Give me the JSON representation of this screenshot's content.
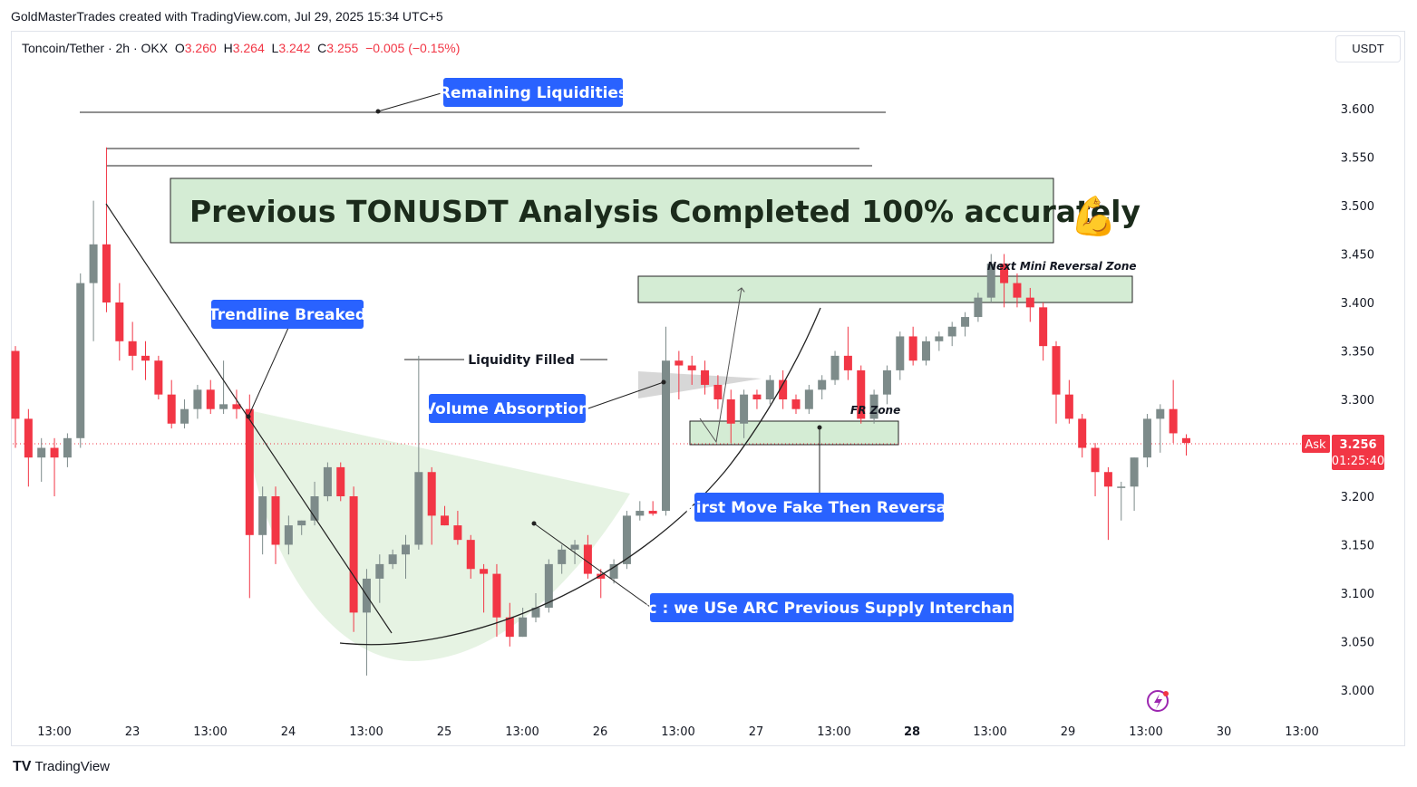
{
  "header": {
    "credit": "GoldMasterTrades created with TradingView.com, Jul 29, 2025 15:34 UTC+5",
    "symbol_name": "Toncoin/Tether · 2h · OKX",
    "o_label": "O",
    "o_value": "3.260",
    "h_label": "H",
    "h_value": "3.264",
    "l_label": "L",
    "l_value": "3.242",
    "c_label": "C",
    "c_value": "3.255",
    "change": "−0.005 (−0.15%)",
    "currency": "USDT"
  },
  "footer": {
    "logo_mark": "TV",
    "logo_text": "TradingView"
  },
  "price_tag": {
    "ask_label": "Ask",
    "price": "3.256",
    "countdown": "01:25:40"
  },
  "colors": {
    "up": "#7d8b8a",
    "down": "#f23645",
    "label_blue": "#2962ff",
    "zone": "#c8e6c9",
    "arc_fill": "#e3f2e0"
  },
  "annotations": {
    "banner": "Previous TONUSDT Analysis Completed 100% accurately",
    "banner_emoji": "💪",
    "remaining": "Remaining Liquidities",
    "trendline": "Trendline Breaked",
    "liquidity_filled": "Liquidity Filled",
    "volume": "Volume Absorption",
    "arc": "Arc : we USe ARC Previous Supply Interchange",
    "first_move": "First Move Fake Then Reversal",
    "mini_zone": "Next Mini Reversal Zone",
    "fr_zone": "FR Zone"
  },
  "chart_data": {
    "type": "candlestick",
    "title": "Toncoin/Tether · 2h · OKX",
    "ylim": [
      2.985,
      3.635
    ],
    "y_ticks": [
      "3.600",
      "3.550",
      "3.500",
      "3.450",
      "3.400",
      "3.350",
      "3.300",
      "3.250",
      "3.200",
      "3.150",
      "3.100",
      "3.050",
      "3.000"
    ],
    "x_ticks": [
      "13:00",
      "23",
      "13:00",
      "24",
      "13:00",
      "25",
      "13:00",
      "26",
      "13:00",
      "27",
      "13:00",
      "28",
      "13:00",
      "29",
      "13:00",
      "30",
      "13:00"
    ],
    "x_ticks_bold": [
      "28"
    ],
    "last_price": 3.256,
    "candles": [
      [
        3.35,
        3.355,
        3.25,
        3.28
      ],
      [
        3.28,
        3.29,
        3.21,
        3.24
      ],
      [
        3.24,
        3.26,
        3.215,
        3.25
      ],
      [
        3.25,
        3.26,
        3.2,
        3.24
      ],
      [
        3.24,
        3.265,
        3.23,
        3.26
      ],
      [
        3.26,
        3.43,
        3.25,
        3.42
      ],
      [
        3.42,
        3.505,
        3.36,
        3.46
      ],
      [
        3.46,
        3.56,
        3.39,
        3.4
      ],
      [
        3.4,
        3.42,
        3.34,
        3.36
      ],
      [
        3.36,
        3.38,
        3.33,
        3.345
      ],
      [
        3.345,
        3.36,
        3.32,
        3.34
      ],
      [
        3.34,
        3.345,
        3.3,
        3.305
      ],
      [
        3.305,
        3.32,
        3.27,
        3.275
      ],
      [
        3.275,
        3.3,
        3.27,
        3.29
      ],
      [
        3.29,
        3.315,
        3.28,
        3.31
      ],
      [
        3.31,
        3.32,
        3.285,
        3.29
      ],
      [
        3.29,
        3.34,
        3.285,
        3.295
      ],
      [
        3.295,
        3.31,
        3.28,
        3.29
      ],
      [
        3.29,
        3.305,
        3.095,
        3.16
      ],
      [
        3.16,
        3.21,
        3.14,
        3.2
      ],
      [
        3.2,
        3.21,
        3.13,
        3.15
      ],
      [
        3.15,
        3.18,
        3.14,
        3.17
      ],
      [
        3.17,
        3.175,
        3.16,
        3.175
      ],
      [
        3.175,
        3.215,
        3.17,
        3.2
      ],
      [
        3.2,
        3.235,
        3.195,
        3.23
      ],
      [
        3.23,
        3.235,
        3.195,
        3.2
      ],
      [
        3.2,
        3.21,
        3.06,
        3.08
      ],
      [
        3.08,
        3.125,
        3.015,
        3.115
      ],
      [
        3.115,
        3.14,
        3.09,
        3.13
      ],
      [
        3.13,
        3.145,
        3.125,
        3.14
      ],
      [
        3.14,
        3.16,
        3.115,
        3.15
      ],
      [
        3.15,
        3.345,
        3.145,
        3.225
      ],
      [
        3.225,
        3.23,
        3.15,
        3.18
      ],
      [
        3.18,
        3.19,
        3.17,
        3.17
      ],
      [
        3.17,
        3.185,
        3.15,
        3.155
      ],
      [
        3.155,
        3.16,
        3.115,
        3.125
      ],
      [
        3.125,
        3.13,
        3.08,
        3.12
      ],
      [
        3.12,
        3.13,
        3.055,
        3.075
      ],
      [
        3.075,
        3.09,
        3.045,
        3.055
      ],
      [
        3.055,
        3.085,
        3.055,
        3.075
      ],
      [
        3.075,
        3.1,
        3.07,
        3.085
      ],
      [
        3.085,
        3.135,
        3.08,
        3.13
      ],
      [
        3.13,
        3.15,
        3.12,
        3.145
      ],
      [
        3.145,
        3.155,
        3.13,
        3.15
      ],
      [
        3.15,
        3.16,
        3.115,
        3.12
      ],
      [
        3.12,
        3.125,
        3.095,
        3.115
      ],
      [
        3.115,
        3.135,
        3.11,
        3.13
      ],
      [
        3.13,
        3.185,
        3.125,
        3.18
      ],
      [
        3.18,
        3.195,
        3.175,
        3.185
      ],
      [
        3.185,
        3.195,
        3.18,
        3.182
      ],
      [
        3.185,
        3.375,
        3.18,
        3.34
      ],
      [
        3.34,
        3.35,
        3.3,
        3.335
      ],
      [
        3.335,
        3.345,
        3.315,
        3.33
      ],
      [
        3.33,
        3.34,
        3.305,
        3.315
      ],
      [
        3.315,
        3.325,
        3.29,
        3.3
      ],
      [
        3.3,
        3.31,
        3.255,
        3.275
      ],
      [
        3.275,
        3.31,
        3.26,
        3.305
      ],
      [
        3.305,
        3.31,
        3.29,
        3.3
      ],
      [
        3.3,
        3.325,
        3.295,
        3.32
      ],
      [
        3.32,
        3.33,
        3.29,
        3.3
      ],
      [
        3.3,
        3.305,
        3.285,
        3.29
      ],
      [
        3.29,
        3.315,
        3.285,
        3.31
      ],
      [
        3.31,
        3.325,
        3.3,
        3.32
      ],
      [
        3.32,
        3.35,
        3.315,
        3.345
      ],
      [
        3.345,
        3.375,
        3.32,
        3.33
      ],
      [
        3.33,
        3.335,
        3.275,
        3.28
      ],
      [
        3.28,
        3.31,
        3.275,
        3.305
      ],
      [
        3.305,
        3.335,
        3.295,
        3.33
      ],
      [
        3.33,
        3.37,
        3.32,
        3.365
      ],
      [
        3.365,
        3.375,
        3.335,
        3.34
      ],
      [
        3.34,
        3.365,
        3.335,
        3.36
      ],
      [
        3.36,
        3.37,
        3.35,
        3.365
      ],
      [
        3.365,
        3.38,
        3.355,
        3.375
      ],
      [
        3.375,
        3.39,
        3.365,
        3.385
      ],
      [
        3.385,
        3.41,
        3.38,
        3.405
      ],
      [
        3.405,
        3.45,
        3.4,
        3.44
      ],
      [
        3.44,
        3.45,
        3.395,
        3.42
      ],
      [
        3.42,
        3.43,
        3.395,
        3.405
      ],
      [
        3.405,
        3.415,
        3.38,
        3.395
      ],
      [
        3.395,
        3.4,
        3.34,
        3.355
      ],
      [
        3.355,
        3.36,
        3.275,
        3.305
      ],
      [
        3.305,
        3.32,
        3.275,
        3.28
      ],
      [
        3.28,
        3.285,
        3.24,
        3.25
      ],
      [
        3.25,
        3.255,
        3.2,
        3.225
      ],
      [
        3.225,
        3.23,
        3.155,
        3.21
      ],
      [
        3.21,
        3.215,
        3.175,
        3.21
      ],
      [
        3.21,
        3.24,
        3.185,
        3.24
      ],
      [
        3.24,
        3.285,
        3.23,
        3.28
      ],
      [
        3.28,
        3.295,
        3.245,
        3.29
      ],
      [
        3.29,
        3.32,
        3.255,
        3.265
      ],
      [
        3.26,
        3.264,
        3.242,
        3.255
      ]
    ]
  }
}
